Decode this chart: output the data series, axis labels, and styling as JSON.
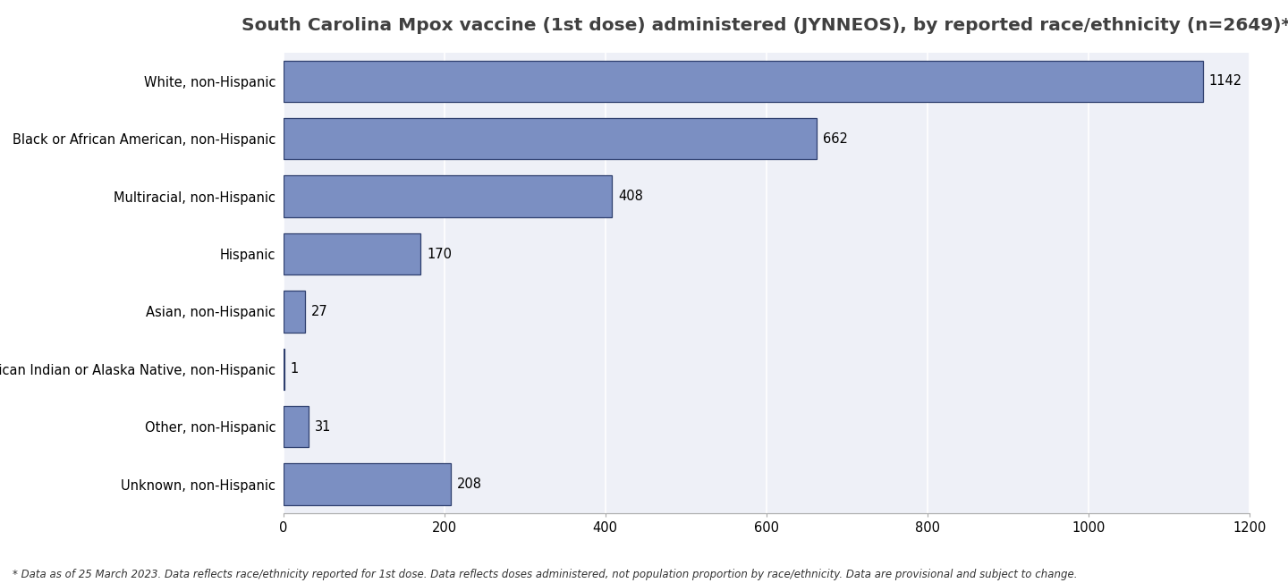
{
  "title": "South Carolina Mpox vaccine (1st dose) administered (JYNNEOS), by reported race/ethnicity (n=2649)*",
  "categories": [
    "White, non-Hispanic",
    "Black or African American, non-Hispanic",
    "Multiracial, non-Hispanic",
    "Hispanic",
    "Asian, non-Hispanic",
    "American Indian or Alaska Native, non-Hispanic",
    "Other, non-Hispanic",
    "Unknown, non-Hispanic"
  ],
  "values": [
    1142,
    662,
    408,
    170,
    27,
    1,
    31,
    208
  ],
  "bar_color": "#7b8fc2",
  "bar_edgecolor": "#2e3f6e",
  "xlim": [
    0,
    1200
  ],
  "xticks": [
    0,
    200,
    400,
    600,
    800,
    1000,
    1200
  ],
  "title_fontsize": 14.5,
  "label_fontsize": 10.5,
  "tick_fontsize": 10.5,
  "value_fontsize": 10.5,
  "footnote": "* Data as of 25 March 2023. Data reflects race/ethnicity reported for 1st dose. Data reflects doses administered, not population proportion by race/ethnicity. Data are provisional and subject to change.",
  "footnote_fontsize": 8.5,
  "background_color": "#ffffff",
  "plot_bg_color": "#eef0f7",
  "grid_color": "#ffffff",
  "bar_height": 0.72
}
